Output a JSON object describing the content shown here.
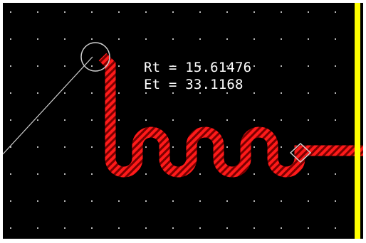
{
  "readout": {
    "rt_label": "Rt",
    "rt_value": "15.61476",
    "et_label": "Et",
    "et_value": "33.1168",
    "equals": "="
  },
  "colors": {
    "background": "#000000",
    "grid_dot": "#bdbdbd",
    "trace": "#ff1a1a",
    "trace_stripe": "#7a0000",
    "guide_line": "#d0d0d0",
    "cursor": "#d0d0d0",
    "board_edge": "#ffff00",
    "text": "#ffffff"
  },
  "icons": {
    "cursor": "circle-cursor-icon",
    "via": "diamond-via-icon"
  }
}
